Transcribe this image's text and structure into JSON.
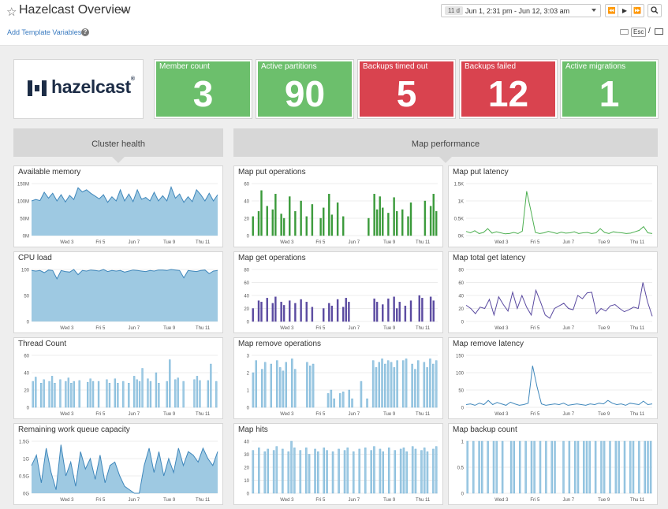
{
  "header": {
    "title": "Hazelcast Overview",
    "template_vars_link": "Add Template Variables",
    "help_icon": "?",
    "time_badge": "11 d",
    "time_range": "Jun 1, 2:31 pm - Jun 12, 3:03 am",
    "nav_buttons": [
      "⏪",
      "▶",
      "⏩"
    ],
    "zoom_icon": "🔍",
    "esc_label": "Esc",
    "slash": "/"
  },
  "logo": {
    "text": "hazelcast",
    "reg": "®"
  },
  "tiles": [
    {
      "label": "Member count",
      "value": "3",
      "status": "ok"
    },
    {
      "label": "Active partitions",
      "value": "90",
      "status": "ok"
    },
    {
      "label": "Backups timed out",
      "value": "5",
      "status": "alert"
    },
    {
      "label": "Backups failed",
      "value": "12",
      "status": "alert"
    },
    {
      "label": "Active migrations",
      "value": "1",
      "status": "ok"
    }
  ],
  "colors": {
    "ok": "#6cbf6c",
    "alert": "#d9434f",
    "area_blue": "#9ec9e2",
    "line_blue": "#3f87bb",
    "green": "#3a9a3a",
    "purple": "#5a4aa0"
  },
  "sections": [
    "Cluster health",
    "Map performance"
  ],
  "x_ticks": [
    "Wed 3",
    "Fri 5",
    "Jun 7",
    "Tue 9",
    "Thu 11"
  ],
  "chart_data": [
    {
      "id": "available_memory",
      "title": "Available memory",
      "type": "area",
      "yticks": [
        "150M",
        "100M",
        "50M",
        "0M"
      ],
      "ylim": [
        0,
        150
      ],
      "values": [
        100,
        104,
        101,
        125,
        108,
        122,
        100,
        118,
        97,
        116,
        104,
        138,
        126,
        132,
        122,
        114,
        106,
        118,
        96,
        112,
        100,
        132,
        100,
        120,
        98,
        132,
        105,
        110,
        100,
        125,
        100,
        115,
        100,
        140,
        108,
        120,
        96,
        112,
        98,
        132,
        118,
        100,
        122,
        100,
        118
      ]
    },
    {
      "id": "cpu_load",
      "title": "CPU load",
      "type": "area",
      "yticks": [
        "100",
        "50",
        "0"
      ],
      "ylim": [
        0,
        100
      ],
      "values": [
        98,
        97,
        98,
        94,
        99,
        98,
        82,
        98,
        96,
        95,
        100,
        90,
        98,
        97,
        99,
        98,
        97,
        100,
        96,
        98,
        97,
        98,
        95,
        97,
        99,
        98,
        97,
        96,
        98,
        97,
        99,
        99,
        98,
        100,
        99,
        98,
        84,
        98,
        97,
        96,
        98,
        99,
        92,
        97,
        98
      ]
    },
    {
      "id": "thread_count",
      "title": "Thread Count",
      "type": "bar",
      "yticks": [
        "60",
        "40",
        "20",
        "0"
      ],
      "ylim": [
        0,
        60
      ],
      "values": [
        30,
        35,
        0,
        28,
        32,
        0,
        30,
        36,
        28,
        0,
        32,
        0,
        30,
        34,
        28,
        30,
        0,
        31,
        0,
        0,
        29,
        33,
        30,
        0,
        30,
        0,
        0,
        32,
        28,
        0,
        33,
        28,
        0,
        30,
        0,
        28,
        0,
        36,
        32,
        30,
        45,
        0,
        33,
        30,
        0,
        40,
        28,
        0,
        0,
        30,
        55,
        0,
        32,
        34,
        0,
        30,
        0,
        0,
        0,
        32,
        36,
        31,
        0,
        0,
        31,
        50,
        0,
        30
      ]
    },
    {
      "id": "work_queue",
      "title": "Remaining work queue capacity",
      "type": "area",
      "yticks": [
        "1.5G",
        "1G",
        "0.5G",
        "0G"
      ],
      "ylim": [
        0,
        1.5
      ],
      "values": [
        0.8,
        1.1,
        0.3,
        1.3,
        0.6,
        0.1,
        1.4,
        0.5,
        0.9,
        0.2,
        1.2,
        0.7,
        1.0,
        0.4,
        1.1,
        0.3,
        0.8,
        0.9,
        0.5,
        0.2,
        0.1,
        0.0,
        0.0,
        0.8,
        1.3,
        0.6,
        1.2,
        0.5,
        1.0,
        0.6,
        1.3,
        0.8,
        1.2,
        1.1,
        0.9,
        1.3,
        1.0,
        0.8,
        1.2
      ]
    },
    {
      "id": "map_put_ops",
      "title": "Map put operations",
      "type": "bar",
      "yticks": [
        "60",
        "40",
        "20",
        "0"
      ],
      "ylim": [
        0,
        60
      ],
      "values": [
        22,
        0,
        28,
        52,
        0,
        34,
        0,
        30,
        48,
        0,
        25,
        20,
        0,
        45,
        0,
        28,
        0,
        40,
        0,
        22,
        0,
        36,
        0,
        0,
        20,
        32,
        0,
        48,
        24,
        0,
        38,
        0,
        22,
        0,
        0,
        0,
        0,
        0,
        0,
        0,
        0,
        20,
        0,
        48,
        30,
        45,
        32,
        0,
        26,
        0,
        44,
        28,
        0,
        30,
        0,
        22,
        38,
        0,
        0,
        0,
        0,
        40,
        0,
        34,
        48,
        28
      ]
    },
    {
      "id": "map_put_latency",
      "title": "Map put latency",
      "type": "line",
      "yticks": [
        "1.5K",
        "1K",
        "0.5K",
        "0K"
      ],
      "ylim": [
        0,
        1500
      ],
      "values": [
        120,
        80,
        140,
        60,
        90,
        200,
        70,
        110,
        80,
        50,
        60,
        90,
        60,
        130,
        1280,
        700,
        90,
        60,
        80,
        120,
        90,
        60,
        100,
        70,
        80,
        110,
        60,
        80,
        90,
        60,
        80,
        200,
        90,
        60,
        110,
        90,
        80,
        60,
        70,
        110,
        150,
        260,
        80,
        60
      ]
    },
    {
      "id": "map_get_ops",
      "title": "Map get operations",
      "type": "bar",
      "yticks": [
        "80",
        "60",
        "40",
        "20",
        "0"
      ],
      "ylim": [
        0,
        80
      ],
      "values": [
        20,
        0,
        32,
        30,
        0,
        36,
        0,
        28,
        38,
        0,
        30,
        25,
        0,
        32,
        0,
        28,
        0,
        34,
        0,
        30,
        0,
        22,
        0,
        0,
        0,
        20,
        0,
        28,
        24,
        0,
        34,
        0,
        22,
        36,
        30,
        0,
        0,
        0,
        0,
        0,
        0,
        0,
        0,
        35,
        30,
        0,
        26,
        0,
        35,
        0,
        38,
        20,
        30,
        0,
        24,
        0,
        32,
        0,
        0,
        40,
        36,
        0,
        0,
        38,
        32,
        0
      ]
    },
    {
      "id": "map_total_get_latency",
      "title": "Map total get latency",
      "type": "line",
      "yticks": [
        "80",
        "60",
        "40",
        "20",
        "0"
      ],
      "ylim": [
        0,
        80
      ],
      "values": [
        25,
        20,
        12,
        22,
        20,
        34,
        10,
        38,
        26,
        16,
        45,
        20,
        40,
        22,
        10,
        48,
        30,
        10,
        5,
        20,
        24,
        28,
        20,
        18,
        40,
        35,
        44,
        45,
        12,
        20,
        16,
        24,
        26,
        20,
        15,
        18,
        22,
        20,
        60,
        30,
        8
      ]
    },
    {
      "id": "thread_count_dup",
      "title": "Map remove operations",
      "type": "bar",
      "yticks": [
        "3",
        "2",
        "1",
        "0"
      ],
      "ylim": [
        0,
        3
      ],
      "values": [
        2.0,
        2.7,
        0,
        2.2,
        2.6,
        0,
        2.5,
        0,
        2.7,
        2.3,
        2.1,
        2.6,
        0,
        2.8,
        2.2,
        0,
        0,
        0,
        2.6,
        2.4,
        2.5,
        0,
        0,
        0,
        0,
        0.8,
        1.0,
        0.5,
        0,
        0.8,
        0.9,
        0,
        1.0,
        0.5,
        0,
        0,
        1.5,
        0,
        0.5,
        0,
        2.7,
        2.3,
        2.6,
        2.8,
        2.5,
        2.7,
        2.6,
        2.3,
        2.7,
        0,
        2.7,
        2.8,
        0,
        2.5,
        2.2,
        2.7,
        0,
        2.6,
        2.3,
        2.8,
        2.5,
        2.7
      ]
    },
    {
      "id": "map_remove_latency",
      "title": "Map remove latency",
      "type": "line",
      "yticks": [
        "150",
        "100",
        "50",
        "0"
      ],
      "ylim": [
        0,
        150
      ],
      "values": [
        8,
        10,
        6,
        12,
        8,
        20,
        8,
        14,
        10,
        6,
        15,
        10,
        6,
        8,
        12,
        120,
        60,
        10,
        6,
        8,
        10,
        8,
        12,
        6,
        8,
        10,
        8,
        6,
        10,
        8,
        12,
        10,
        20,
        12,
        8,
        10,
        6,
        12,
        10,
        8,
        18,
        8,
        10
      ]
    },
    {
      "id": "map_hits",
      "title": "Map hits",
      "type": "bar",
      "yticks": [
        "40",
        "30",
        "20",
        "10",
        "0"
      ],
      "ylim": [
        0,
        40
      ],
      "values": [
        33,
        0,
        35,
        0,
        32,
        34,
        0,
        33,
        36,
        0,
        34,
        0,
        32,
        40,
        35,
        0,
        33,
        0,
        35,
        30,
        0,
        34,
        32,
        0,
        35,
        33,
        0,
        32,
        0,
        34,
        0,
        33,
        35,
        0,
        32,
        0,
        34,
        0,
        35,
        0,
        33,
        36,
        0,
        34,
        32,
        0,
        35,
        0,
        33,
        0,
        34,
        35,
        32,
        0,
        36,
        34,
        0,
        33,
        35,
        32,
        0,
        34,
        36
      ]
    },
    {
      "id": "map_backup_count",
      "title": "Map backup count",
      "type": "bar",
      "yticks": [
        "1",
        "0.5",
        "0"
      ],
      "ylim": [
        0,
        1
      ],
      "values": [
        1,
        0,
        1,
        0,
        1,
        1,
        0,
        1,
        0,
        1,
        1,
        0,
        1,
        0,
        0,
        1,
        1,
        0,
        1,
        0,
        1,
        0,
        1,
        1,
        0,
        1,
        0,
        1,
        0,
        1,
        1,
        0,
        0,
        1,
        0,
        1,
        0,
        1,
        1,
        0,
        1,
        1,
        1,
        0,
        1,
        0,
        1,
        1,
        0,
        1,
        0,
        1,
        1,
        0,
        1,
        0,
        1,
        1,
        0,
        1,
        0,
        1,
        1,
        1
      ]
    }
  ]
}
